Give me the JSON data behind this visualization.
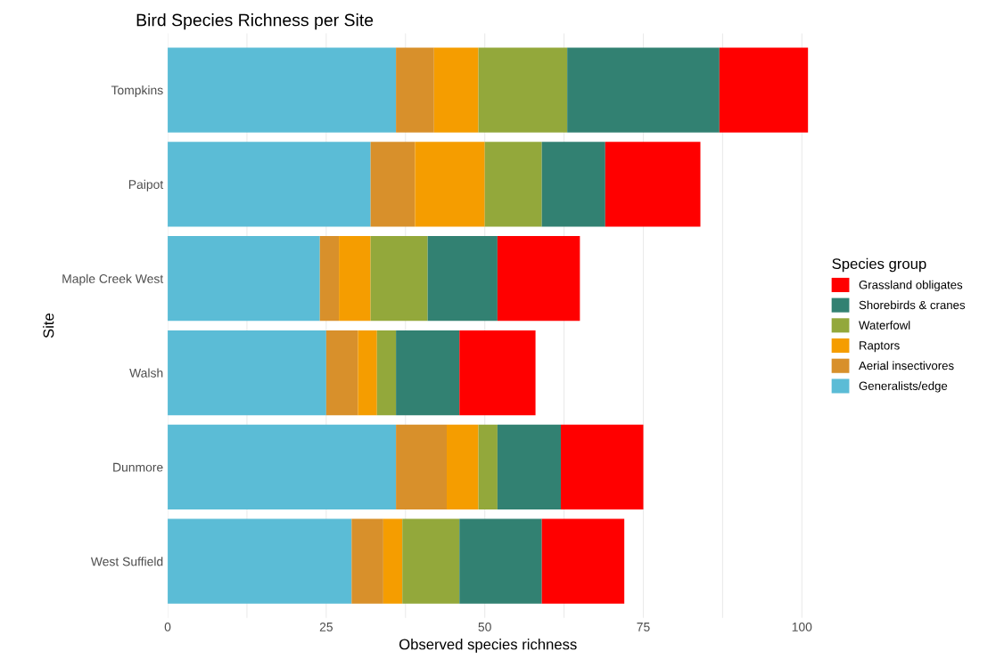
{
  "chart_data": {
    "type": "bar",
    "orientation": "horizontal",
    "stacked": true,
    "title": "Bird Species Richness per Site",
    "xlabel": "Observed species richness",
    "ylabel": "Site",
    "legend_title": "Species group",
    "legend": "right",
    "grid": "x",
    "xlim": [
      0,
      101
    ],
    "categories": [
      "Tompkins",
      "Paipot",
      "Maple Creek West",
      "Walsh",
      "Dunmore",
      "West Suffield"
    ],
    "xticks": [
      0,
      {
        "value": 12.5,
        "label": null
      },
      25,
      {
        "value": 37.5,
        "label": null
      },
      50,
      {
        "value": 62.5,
        "label": null
      },
      75,
      {
        "value": 87.5,
        "label": null
      },
      100
    ],
    "series": [
      {
        "name": "Generalists/edge",
        "color": "#5bbcd6",
        "values": [
          36,
          32,
          24,
          25,
          36,
          29
        ]
      },
      {
        "name": "Aerial insectivores",
        "color": "#d8902b",
        "values": [
          6,
          7,
          3,
          5,
          8,
          5
        ]
      },
      {
        "name": "Raptors",
        "color": "#f59d00",
        "values": [
          7,
          11,
          5,
          3,
          5,
          3
        ]
      },
      {
        "name": "Waterfowl",
        "color": "#93a83b",
        "values": [
          14,
          9,
          9,
          3,
          3,
          9
        ]
      },
      {
        "name": "Shorebirds & cranes",
        "color": "#328172",
        "values": [
          24,
          10,
          11,
          10,
          10,
          13
        ]
      },
      {
        "name": "Grassland obligates",
        "color": "#ff0000",
        "values": [
          14,
          15,
          13,
          12,
          13,
          13
        ]
      }
    ]
  }
}
